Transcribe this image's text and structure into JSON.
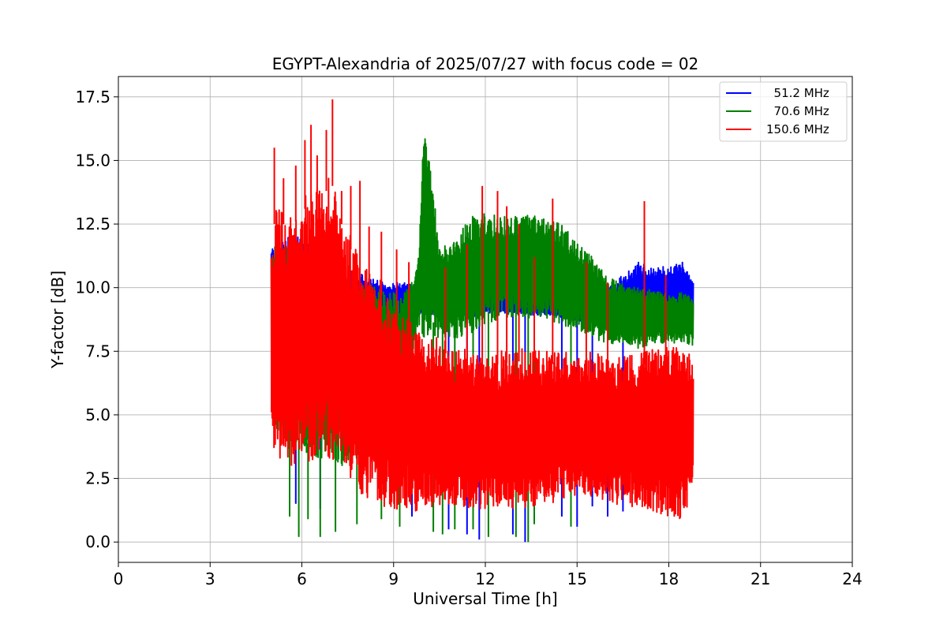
{
  "chart_data": {
    "type": "line",
    "title": "EGYPT-Alexandria of 2025/07/27 with focus code = 02",
    "xlabel": "Universal Time [h]",
    "ylabel": "Y-factor [dB]",
    "xlim": [
      0,
      24
    ],
    "ylim": [
      -0.8,
      18.3
    ],
    "xticks": [
      0,
      3,
      6,
      9,
      12,
      15,
      18,
      21,
      24
    ],
    "xtick_labels": [
      "0",
      "3",
      "6",
      "9",
      "12",
      "15",
      "18",
      "21",
      "24"
    ],
    "yticks": [
      0.0,
      2.5,
      5.0,
      7.5,
      10.0,
      12.5,
      15.0,
      17.5
    ],
    "ytick_labels": [
      "0.0",
      "2.5",
      "5.0",
      "7.5",
      "10.0",
      "12.5",
      "15.0",
      "17.5"
    ],
    "grid": true,
    "legend_position": "top-right",
    "series": [
      {
        "name": "  51.2 MHz",
        "color": "#0000ff",
        "envelope": {
          "x": [
            5.0,
            5.5,
            6.0,
            6.5,
            7.0,
            7.5,
            8.0,
            8.5,
            9.0,
            9.5,
            10.0,
            10.5,
            11.0,
            11.5,
            12.0,
            12.5,
            13.0,
            13.5,
            14.0,
            14.5,
            15.0,
            15.5,
            16.0,
            16.5,
            17.0,
            17.5,
            18.0,
            18.5,
            18.8
          ],
          "upper": [
            11.5,
            12.0,
            12.0,
            11.5,
            11.0,
            10.8,
            10.5,
            10.3,
            10.2,
            10.2,
            10.0,
            9.8,
            9.6,
            9.5,
            9.8,
            9.9,
            9.8,
            9.8,
            9.7,
            9.6,
            9.5,
            9.7,
            10.0,
            10.5,
            11.0,
            10.8,
            10.9,
            11.0,
            10.3
          ],
          "lower": [
            9.0,
            8.5,
            8.3,
            8.2,
            8.5,
            8.8,
            8.9,
            8.9,
            8.8,
            8.9,
            9.0,
            8.9,
            8.8,
            8.8,
            9.0,
            9.0,
            9.0,
            8.9,
            8.9,
            8.8,
            8.7,
            8.6,
            8.6,
            8.6,
            8.6,
            8.6,
            8.6,
            8.5,
            8.5
          ]
        },
        "dips": [
          [
            5.8,
            1.5
          ],
          [
            6.6,
            1.3
          ],
          [
            9.6,
            1.0
          ],
          [
            10.8,
            0.5
          ],
          [
            11.4,
            0.3
          ],
          [
            11.8,
            0.1
          ],
          [
            12.9,
            0.3
          ],
          [
            13.3,
            0.0
          ],
          [
            14.5,
            1.0
          ],
          [
            15.0,
            0.6
          ],
          [
            15.5,
            1.4
          ],
          [
            16.0,
            1.0
          ],
          [
            16.5,
            1.2
          ]
        ]
      },
      {
        "name": "  70.6 MHz",
        "color": "#008000",
        "envelope": {
          "x": [
            5.0,
            5.5,
            6.0,
            6.5,
            7.0,
            7.5,
            8.0,
            8.5,
            9.0,
            9.5,
            9.8,
            10.0,
            10.2,
            10.5,
            11.0,
            11.5,
            12.0,
            12.5,
            13.0,
            13.5,
            14.0,
            14.5,
            15.0,
            15.5,
            16.0,
            16.5,
            17.0,
            17.5,
            18.0,
            18.5,
            18.8
          ],
          "upper": [
            11.8,
            12.0,
            11.5,
            11.5,
            11.2,
            10.5,
            10.2,
            10.0,
            9.8,
            10.0,
            11.0,
            16.5,
            15.0,
            11.5,
            12.0,
            12.8,
            13.0,
            12.8,
            12.8,
            12.9,
            12.8,
            12.5,
            11.8,
            11.2,
            10.5,
            10.3,
            10.0,
            9.9,
            9.8,
            9.8,
            9.6
          ],
          "lower": [
            4.5,
            4.0,
            3.5,
            3.2,
            3.0,
            3.0,
            3.5,
            4.5,
            5.5,
            6.5,
            8.5,
            8.0,
            8.2,
            8.0,
            8.0,
            8.2,
            8.5,
            8.8,
            8.8,
            8.8,
            8.8,
            8.5,
            8.3,
            8.0,
            7.8,
            7.8,
            7.6,
            7.8,
            7.8,
            7.8,
            7.7
          ]
        },
        "dips": [
          [
            5.6,
            1.0
          ],
          [
            5.9,
            0.2
          ],
          [
            6.2,
            0.9
          ],
          [
            6.6,
            0.2
          ],
          [
            7.1,
            0.4
          ],
          [
            7.8,
            0.7
          ],
          [
            8.6,
            0.9
          ],
          [
            9.2,
            0.6
          ],
          [
            10.3,
            0.4
          ],
          [
            10.6,
            0.3
          ],
          [
            11.0,
            0.5
          ],
          [
            11.6,
            0.5
          ],
          [
            12.1,
            0.2
          ],
          [
            13.0,
            0.2
          ],
          [
            13.4,
            0.0
          ],
          [
            13.6,
            0.7
          ],
          [
            14.8,
            0.6
          ]
        ]
      },
      {
        "name": "150.6 MHz",
        "color": "#ff0000",
        "envelope": {
          "x": [
            5.0,
            5.2,
            5.5,
            6.0,
            6.5,
            7.0,
            7.3,
            7.6,
            8.0,
            8.5,
            9.0,
            9.5,
            10.0,
            10.5,
            11.0,
            11.5,
            12.0,
            12.5,
            13.0,
            13.5,
            14.0,
            14.5,
            15.0,
            15.5,
            16.0,
            16.5,
            17.0,
            17.5,
            18.0,
            18.5,
            18.8
          ],
          "upper": [
            12.0,
            14.0,
            12.5,
            13.5,
            14.0,
            14.5,
            13.0,
            12.0,
            10.8,
            10.5,
            9.0,
            8.8,
            8.2,
            8.0,
            7.8,
            7.5,
            7.4,
            7.5,
            7.6,
            7.6,
            7.5,
            7.5,
            7.4,
            7.5,
            7.2,
            7.3,
            7.4,
            7.6,
            7.7,
            7.6,
            7.2
          ],
          "lower": [
            3.8,
            3.5,
            2.8,
            3.0,
            3.2,
            3.2,
            3.0,
            2.5,
            1.8,
            1.4,
            1.3,
            1.2,
            1.2,
            1.4,
            1.4,
            1.3,
            1.3,
            1.3,
            1.3,
            1.4,
            1.5,
            1.6,
            1.8,
            1.8,
            1.6,
            1.4,
            1.3,
            1.2,
            1.0,
            0.8,
            2.2
          ]
        },
        "spikes": [
          [
            5.1,
            15.5
          ],
          [
            5.4,
            14.3
          ],
          [
            5.8,
            14.8
          ],
          [
            6.1,
            15.8
          ],
          [
            6.3,
            16.4
          ],
          [
            6.5,
            15.2
          ],
          [
            6.8,
            16.2
          ],
          [
            7.0,
            17.4
          ],
          [
            7.3,
            13.8
          ],
          [
            7.6,
            14.0
          ],
          [
            7.9,
            14.2
          ],
          [
            8.2,
            12.4
          ],
          [
            8.6,
            12.2
          ],
          [
            9.1,
            11.5
          ],
          [
            9.5,
            11.0
          ],
          [
            10.7,
            10.8
          ],
          [
            11.4,
            11.7
          ],
          [
            11.9,
            14.0
          ],
          [
            12.4,
            13.8
          ],
          [
            12.7,
            13.2
          ],
          [
            13.1,
            12.5
          ],
          [
            13.6,
            11.2
          ],
          [
            14.2,
            13.5
          ],
          [
            15.3,
            11.0
          ],
          [
            16.0,
            10.2
          ],
          [
            17.2,
            13.4
          ],
          [
            17.9,
            10.5
          ]
        ]
      }
    ]
  }
}
